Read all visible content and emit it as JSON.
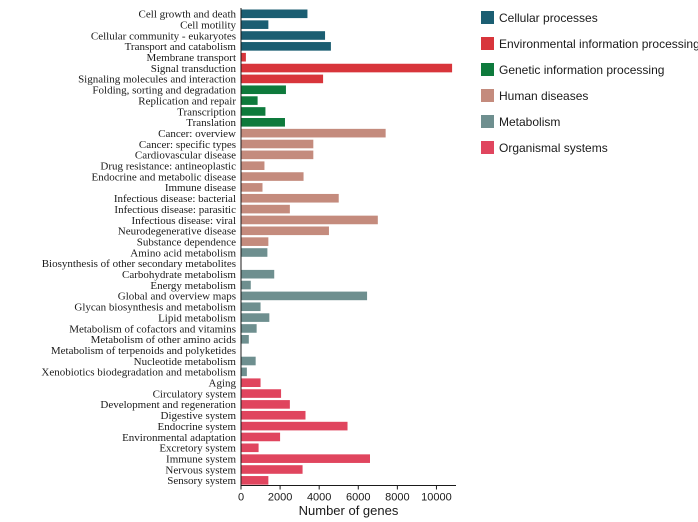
{
  "chart_data": {
    "type": "bar",
    "orientation": "horizontal",
    "xlabel": "Number of genes",
    "xlim": [
      0,
      11000
    ],
    "xticks": [
      0,
      2000,
      4000,
      6000,
      8000,
      10000
    ],
    "groups": [
      {
        "name": "Cellular processes",
        "color": "#1b5e72"
      },
      {
        "name": "Environmental information processing",
        "color": "#d8353b"
      },
      {
        "name": "Genetic information processing",
        "color": "#0e7a3c"
      },
      {
        "name": "Human diseases",
        "color": "#c48b7d"
      },
      {
        "name": "Metabolism",
        "color": "#6e8f8f"
      },
      {
        "name": "Organismal systems",
        "color": "#e0455e"
      }
    ],
    "bars": [
      {
        "label": "Cell growth and death",
        "value": 3400,
        "group": 0
      },
      {
        "label": "Cell motility",
        "value": 1400,
        "group": 0
      },
      {
        "label": "Cellular community - eukaryotes",
        "value": 4300,
        "group": 0
      },
      {
        "label": "Transport and catabolism",
        "value": 4600,
        "group": 0
      },
      {
        "label": "Membrane transport",
        "value": 250,
        "group": 1
      },
      {
        "label": "Signal transduction",
        "value": 10800,
        "group": 1
      },
      {
        "label": "Signaling molecules and interaction",
        "value": 4200,
        "group": 1
      },
      {
        "label": "Folding, sorting and degradation",
        "value": 2300,
        "group": 2
      },
      {
        "label": "Replication and repair",
        "value": 850,
        "group": 2
      },
      {
        "label": "Transcription",
        "value": 1250,
        "group": 2
      },
      {
        "label": "Translation",
        "value": 2250,
        "group": 2
      },
      {
        "label": "Cancer: overview",
        "value": 7400,
        "group": 3
      },
      {
        "label": "Cancer: specific types",
        "value": 3700,
        "group": 3
      },
      {
        "label": "Cardiovascular disease",
        "value": 3700,
        "group": 3
      },
      {
        "label": "Drug resistance: antineoplastic",
        "value": 1200,
        "group": 3
      },
      {
        "label": "Endocrine and metabolic disease",
        "value": 3200,
        "group": 3
      },
      {
        "label": "Immune disease",
        "value": 1100,
        "group": 3
      },
      {
        "label": "Infectious disease: bacterial",
        "value": 5000,
        "group": 3
      },
      {
        "label": "Infectious disease: parasitic",
        "value": 2500,
        "group": 3
      },
      {
        "label": "Infectious disease: viral",
        "value": 7000,
        "group": 3
      },
      {
        "label": "Neurodegenerative disease",
        "value": 4500,
        "group": 3
      },
      {
        "label": "Substance dependence",
        "value": 1400,
        "group": 3
      },
      {
        "label": "Amino acid metabolism",
        "value": 1350,
        "group": 4
      },
      {
        "label": "Biosynthesis of other secondary metabolites",
        "value": 0,
        "group": 4
      },
      {
        "label": "Carbohydrate metabolism",
        "value": 1700,
        "group": 4
      },
      {
        "label": "Energy metabolism",
        "value": 500,
        "group": 4
      },
      {
        "label": "Global and overview maps",
        "value": 6450,
        "group": 4
      },
      {
        "label": "Glycan biosynthesis and metabolism",
        "value": 1000,
        "group": 4
      },
      {
        "label": "Lipid metabolism",
        "value": 1450,
        "group": 4
      },
      {
        "label": "Metabolism of cofactors and vitamins",
        "value": 800,
        "group": 4
      },
      {
        "label": "Metabolism of other amino acids",
        "value": 400,
        "group": 4
      },
      {
        "label": "Metabolism of terpenoids and polyketides",
        "value": 0,
        "group": 4
      },
      {
        "label": "Nucleotide metabolism",
        "value": 750,
        "group": 4
      },
      {
        "label": "Xenobiotics biodegradation and metabolism",
        "value": 300,
        "group": 4
      },
      {
        "label": "Aging",
        "value": 1000,
        "group": 5
      },
      {
        "label": "Circulatory system",
        "value": 2050,
        "group": 5
      },
      {
        "label": "Development and regeneration",
        "value": 2500,
        "group": 5
      },
      {
        "label": "Digestive system",
        "value": 3300,
        "group": 5
      },
      {
        "label": "Endocrine system",
        "value": 5450,
        "group": 5
      },
      {
        "label": "Environmental adaptation",
        "value": 2000,
        "group": 5
      },
      {
        "label": "Excretory system",
        "value": 900,
        "group": 5
      },
      {
        "label": "Immune system",
        "value": 6600,
        "group": 5
      },
      {
        "label": "Nervous system",
        "value": 3150,
        "group": 5
      },
      {
        "label": "Sensory system",
        "value": 1400,
        "group": 5
      }
    ]
  }
}
